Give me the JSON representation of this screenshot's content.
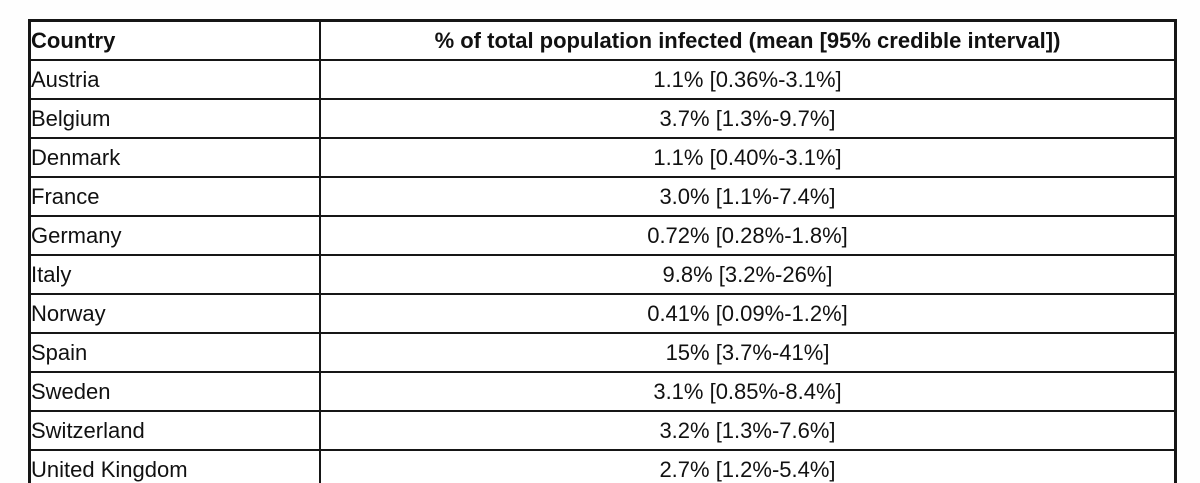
{
  "table": {
    "columns": [
      {
        "label": "Country"
      },
      {
        "label": "% of total population infected (mean [95% credible interval])"
      }
    ],
    "rows": [
      {
        "country": "Austria",
        "value": "1.1% [0.36%-3.1%]"
      },
      {
        "country": "Belgium",
        "value": "3.7% [1.3%-9.7%]"
      },
      {
        "country": "Denmark",
        "value": "1.1% [0.40%-3.1%]"
      },
      {
        "country": "France",
        "value": "3.0% [1.1%-7.4%]"
      },
      {
        "country": "Germany",
        "value": "0.72% [0.28%-1.8%]"
      },
      {
        "country": "Italy",
        "value": "9.8% [3.2%-26%]"
      },
      {
        "country": "Norway",
        "value": "0.41% [0.09%-1.2%]"
      },
      {
        "country": "Spain",
        "value": "15% [3.7%-41%]"
      },
      {
        "country": "Sweden",
        "value": "3.1% [0.85%-8.4%]"
      },
      {
        "country": "Switzerland",
        "value": "3.2% [1.3%-7.6%]"
      },
      {
        "country": "United Kingdom",
        "value": "2.7% [1.2%-5.4%]"
      }
    ]
  },
  "chart_data": {
    "type": "table",
    "title": "% of total population infected (mean [95% credible interval])",
    "categories": [
      "Austria",
      "Belgium",
      "Denmark",
      "France",
      "Germany",
      "Italy",
      "Norway",
      "Spain",
      "Sweden",
      "Switzerland",
      "United Kingdom"
    ],
    "mean_percent": [
      1.1,
      3.7,
      1.1,
      3.0,
      0.72,
      9.8,
      0.41,
      15,
      3.1,
      3.2,
      2.7
    ],
    "ci_low_percent": [
      0.36,
      1.3,
      0.4,
      1.1,
      0.28,
      3.2,
      0.09,
      3.7,
      0.85,
      1.3,
      1.2
    ],
    "ci_high_percent": [
      3.1,
      9.7,
      3.1,
      7.4,
      1.8,
      26,
      1.2,
      41,
      8.4,
      7.6,
      5.4
    ]
  },
  "colors": {
    "border": "#161616",
    "text": "#111111",
    "cell_background": "#ffffff"
  }
}
